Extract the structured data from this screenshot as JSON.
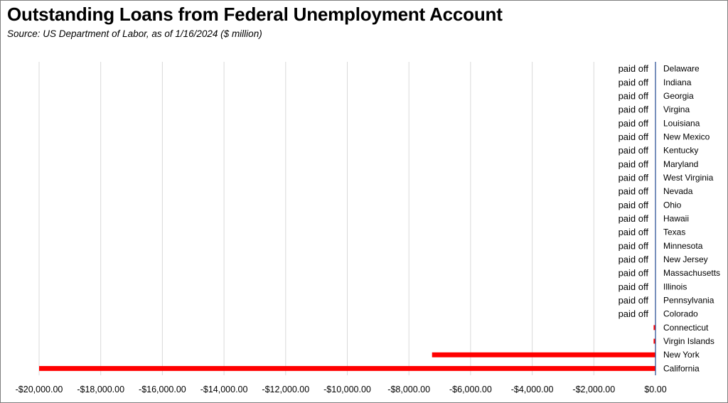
{
  "chart_data": {
    "type": "bar",
    "orientation": "horizontal",
    "title": "Outstanding Loans from Federal Unemployment Account",
    "subtitle": "Source:  US Department of Labor, as of 1/16/2024  ($ million)",
    "xlim": [
      -20000,
      0
    ],
    "x_ticks": [
      -20000,
      -18000,
      -16000,
      -14000,
      -12000,
      -10000,
      -8000,
      -6000,
      -4000,
      -2000,
      0
    ],
    "x_tick_labels": [
      "-$20,000.00",
      "-$18,000.00",
      "-$16,000.00",
      "-$14,000.00",
      "-$12,000.00",
      "-$10,000.00",
      "-$8,000.00",
      "-$6,000.00",
      "-$4,000.00",
      "-$2,000.00",
      "$0.00"
    ],
    "grid": true,
    "legend": "none",
    "bar_color": "#ff0000",
    "categories": [
      "Delaware",
      "Indiana",
      "Georgia",
      "Virgina",
      "Louisiana",
      "New Mexico",
      "Kentucky",
      "Maryland",
      "West Virginia",
      "Nevada",
      "Ohio",
      "Hawaii",
      "Texas",
      "Minnesota",
      "New Jersey",
      "Massachusetts",
      "Illinois",
      "Pennsylvania",
      "Colorado",
      "Connecticut",
      "Virgin Islands",
      "New York",
      "California"
    ],
    "values": [
      0,
      0,
      0,
      0,
      0,
      0,
      0,
      0,
      0,
      0,
      0,
      0,
      0,
      0,
      0,
      0,
      0,
      0,
      0,
      -60,
      -60,
      -7250,
      -20000
    ],
    "data_labels": [
      "paid off",
      "paid off",
      "paid off",
      "paid off",
      "paid off",
      "paid off",
      "paid off",
      "paid off",
      "paid off",
      "paid off",
      "paid off",
      "paid off",
      "paid off",
      "paid off",
      "paid off",
      "paid off",
      "paid off",
      "paid off",
      "paid off",
      "",
      "",
      "",
      ""
    ]
  }
}
